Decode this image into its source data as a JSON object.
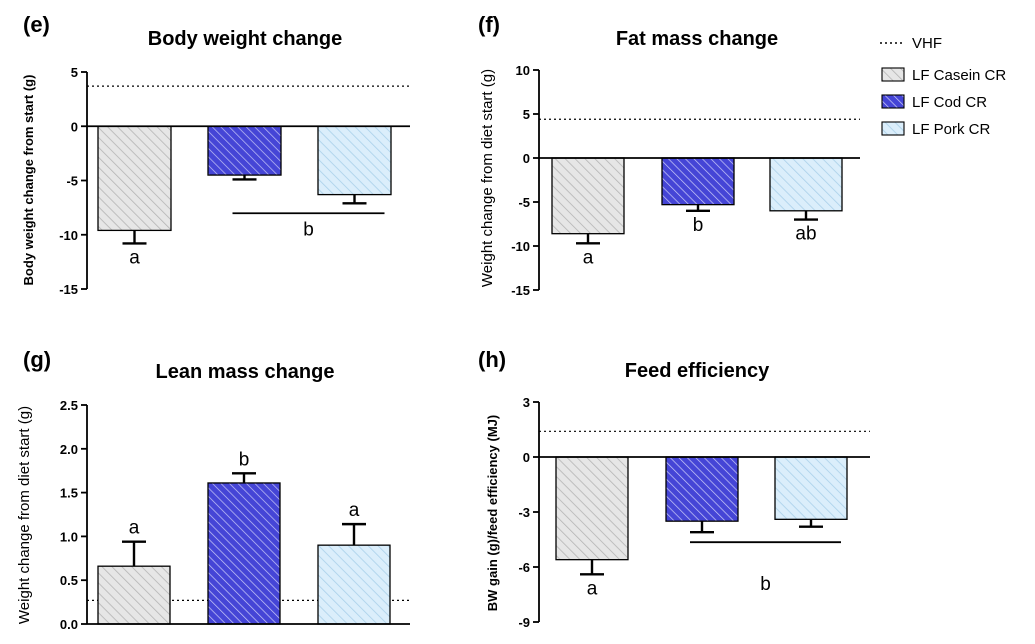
{
  "chart_data": [
    {
      "type": "bar",
      "panel": "(e)",
      "title": "Body weight change",
      "ylabel": "Body weight change from start (g)",
      "categories": [
        "LF Casein CR",
        "LF Cod CR",
        "LF Pork CR"
      ],
      "values": [
        -9.6,
        -4.5,
        -6.3
      ],
      "errors": [
        1.2,
        0.4,
        0.8
      ],
      "ylim": [
        -15,
        5
      ],
      "yticks": [
        5,
        0,
        -5,
        -10,
        -15
      ],
      "reference_line": {
        "name": "VHF",
        "value": 3.7
      },
      "significance": [
        {
          "label": "a",
          "bars": [
            0
          ]
        },
        {
          "label": "b",
          "bars": [
            1,
            2
          ],
          "bracket": true
        }
      ]
    },
    {
      "type": "bar",
      "panel": "(f)",
      "title": "Fat mass change",
      "ylabel": "Weight change from diet start (g)",
      "categories": [
        "LF Casein CR",
        "LF Cod CR",
        "LF Pork CR"
      ],
      "values": [
        -8.6,
        -5.3,
        -6.0
      ],
      "errors": [
        1.1,
        0.7,
        1.0
      ],
      "ylim": [
        -15,
        10
      ],
      "yticks": [
        10,
        5,
        0,
        -5,
        -10,
        -15
      ],
      "reference_line": {
        "name": "VHF",
        "value": 4.4
      },
      "significance": [
        {
          "label": "a",
          "bars": [
            0
          ]
        },
        {
          "label": "b",
          "bars": [
            1
          ]
        },
        {
          "label": "ab",
          "bars": [
            2
          ]
        }
      ]
    },
    {
      "type": "bar",
      "panel": "(g)",
      "title": "Lean mass change",
      "ylabel": "Weight change from diet start (g)",
      "categories": [
        "LF Casein CR",
        "LF Cod CR",
        "LF Pork CR"
      ],
      "values": [
        0.66,
        1.61,
        0.9
      ],
      "errors": [
        0.28,
        0.11,
        0.24
      ],
      "ylim": [
        0,
        2.5
      ],
      "yticks": [
        0.0,
        0.5,
        1.0,
        1.5,
        2.0,
        2.5
      ],
      "ytick_labels": [
        "0.0",
        "0.5",
        "1.0",
        "1.5",
        "2.0",
        "2.5"
      ],
      "reference_line": {
        "name": "VHF",
        "value": 0.27
      },
      "significance": [
        {
          "label": "a",
          "bars": [
            0
          ]
        },
        {
          "label": "b",
          "bars": [
            1
          ]
        },
        {
          "label": "a",
          "bars": [
            2
          ]
        }
      ]
    },
    {
      "type": "bar",
      "panel": "(h)",
      "title": "Feed efficiency",
      "ylabel": "BW gain (g)/feed efficiency (MJ)",
      "categories": [
        "LF Casein CR",
        "LF Cod CR",
        "LF Pork CR"
      ],
      "values": [
        -5.6,
        -3.5,
        -3.4
      ],
      "errors": [
        0.8,
        0.6,
        0.4
      ],
      "ylim": [
        -9,
        3
      ],
      "yticks": [
        3,
        0,
        -3,
        -6,
        -9
      ],
      "reference_line": {
        "name": "VHF",
        "value": 1.4
      },
      "significance": [
        {
          "label": "a",
          "bars": [
            0
          ]
        },
        {
          "label": "b",
          "bars": [
            1,
            2
          ],
          "bracket": true
        }
      ]
    }
  ],
  "legend": {
    "items": [
      {
        "label": "VHF",
        "style": "dotted-line"
      },
      {
        "label": "LF Casein CR",
        "fill": "#e2e2e2",
        "hatch": "#b0b0b0"
      },
      {
        "label": "LF Cod CR",
        "fill": "#4a4ad8",
        "hatch": "#ffffff"
      },
      {
        "label": "LF Pork CR",
        "fill": "#d6ecfb",
        "hatch": "#a9cfe8"
      }
    ]
  },
  "colors": {
    "casein": "#e2e2e2",
    "cod": "#4a4ad8",
    "pork": "#d6ecfb",
    "axis": "#000000"
  }
}
